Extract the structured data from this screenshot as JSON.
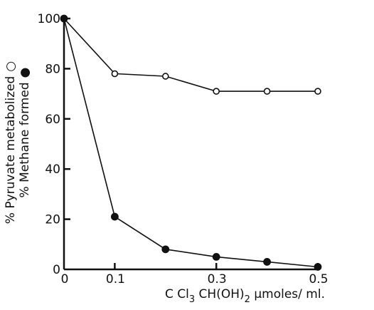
{
  "chart_data": {
    "type": "line",
    "title": "",
    "xlabel": "CCl3CH(OH)2 μmoles/ ml.",
    "xlabel_parts": {
      "pre": "C Cl",
      "sub1": "3",
      "mid": " CH(OH)",
      "sub2": "2",
      "post": " μmoles/ ml."
    },
    "ylabel_lines": [
      "% Pyruvate metabolized",
      "% Methane formed"
    ],
    "xlim": [
      0,
      0.5
    ],
    "ylim": [
      0,
      100
    ],
    "x_ticks": [
      0,
      0.1,
      0.3,
      0.5
    ],
    "x_tick_labels": [
      "0",
      "0.1",
      "0.3",
      "0.5"
    ],
    "y_ticks": [
      0,
      20,
      40,
      60,
      80,
      100
    ],
    "y_tick_labels": [
      "0",
      "20",
      "40",
      "60",
      "80",
      "100"
    ],
    "grid": false,
    "series": [
      {
        "name": "% Pyruvate metabolized",
        "marker": "open-circle",
        "x": [
          0,
          0.1,
          0.2,
          0.3,
          0.4,
          0.5
        ],
        "y": [
          100,
          78,
          77,
          71,
          71,
          71
        ]
      },
      {
        "name": "% Methane formed",
        "marker": "filled-circle",
        "x": [
          0,
          0.1,
          0.2,
          0.3,
          0.4,
          0.5
        ],
        "y": [
          100,
          21,
          8,
          5,
          3,
          1
        ]
      }
    ]
  }
}
